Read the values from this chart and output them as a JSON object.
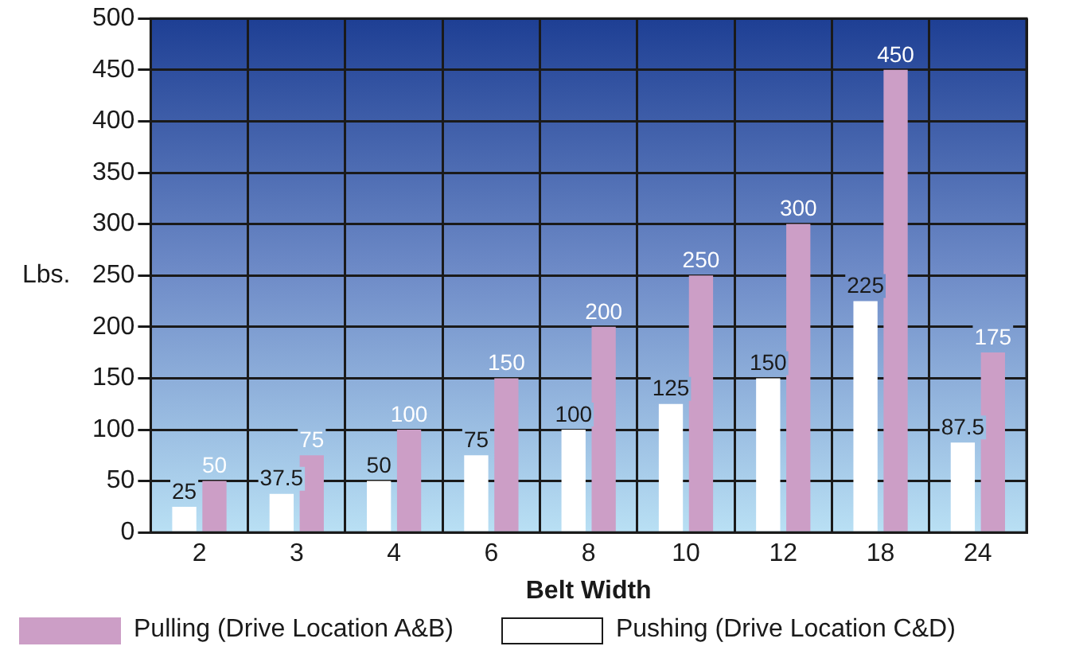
{
  "chart_data": {
    "type": "bar",
    "xlabel": "Belt Width",
    "ylabel": "Lbs.",
    "categories": [
      "2",
      "3",
      "4",
      "6",
      "8",
      "10",
      "12",
      "18",
      "24"
    ],
    "series": [
      {
        "name": "Pushing (Drive Location C&D)",
        "color": "#ffffff",
        "values": [
          25,
          37.5,
          50,
          75,
          100,
          125,
          150,
          225,
          87.5
        ]
      },
      {
        "name": "Pulling (Drive Location A&B)",
        "color": "#cc9ec6",
        "values": [
          50,
          75,
          100,
          150,
          200,
          250,
          300,
          450,
          175
        ]
      }
    ],
    "ylim": [
      0,
      500
    ],
    "yticks": [
      0,
      50,
      100,
      150,
      200,
      250,
      300,
      350,
      400,
      450,
      500
    ],
    "grid": true,
    "legend": "bottom left",
    "data_labels": true
  }
}
